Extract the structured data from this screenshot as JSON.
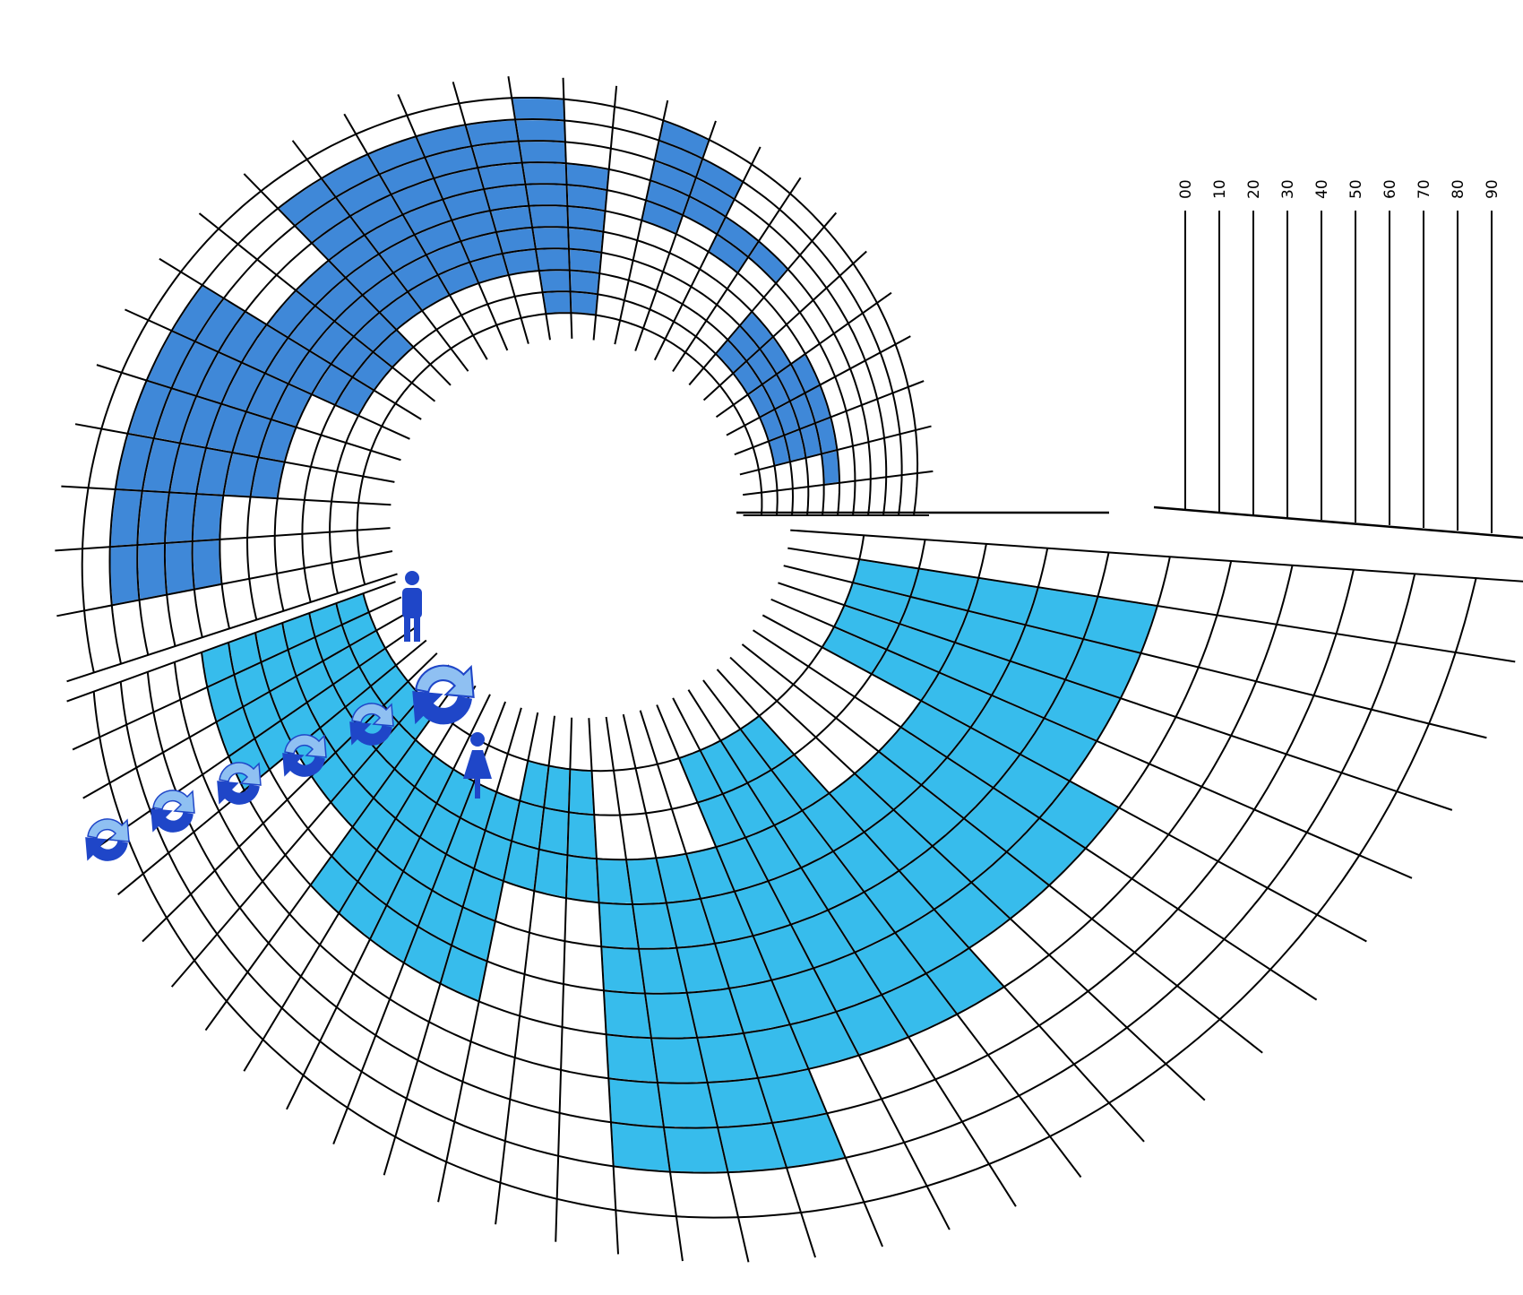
{
  "colors": {
    "male_fill": "#3f88d8",
    "female_fill": "#37bcec",
    "grid_line": "#000000",
    "cell_border": "#ffffff",
    "icon_blue": "#1f46c8",
    "icon_light": "#8fc0f2"
  },
  "scale_labels": [
    "00",
    "10",
    "20",
    "30",
    "40",
    "50",
    "60",
    "70",
    "80",
    "90"
  ],
  "ring_count": 10,
  "icons": [
    {
      "name": "male-person-icon",
      "kind": "male"
    },
    {
      "name": "female-person-icon",
      "kind": "female"
    },
    {
      "name": "large-swap-arrows-icon",
      "kind": "swap"
    },
    {
      "name": "swap-arrows-icon",
      "kind": "swap"
    }
  ],
  "male_spiral": {
    "column_count": 28,
    "cells": [
      [
        6,
        7
      ],
      [
        6,
        8
      ],
      [
        5,
        8
      ],
      [
        6,
        9
      ],
      [
        7,
        9
      ],
      [
        8,
        9
      ],
      [
        5,
        10
      ],
      [
        6,
        10
      ],
      [
        7,
        10
      ],
      [
        8,
        10
      ],
      [
        9,
        10
      ],
      [
        4,
        1
      ],
      [
        4,
        2
      ],
      [
        4,
        3
      ],
      [
        4,
        4
      ],
      [
        0,
        12
      ],
      [
        1,
        12
      ],
      [
        2,
        12
      ],
      [
        3,
        12
      ],
      [
        4,
        12
      ],
      [
        5,
        12
      ],
      [
        6,
        12
      ],
      [
        0,
        13
      ],
      [
        1,
        13
      ],
      [
        2,
        13
      ],
      [
        3,
        13
      ],
      [
        4,
        13
      ],
      [
        5,
        13
      ],
      [
        6,
        13
      ],
      [
        7,
        13
      ],
      [
        8,
        13
      ],
      [
        9,
        13
      ]
    ]
  },
  "female_spiral": {
    "column_count": 32
  }
}
